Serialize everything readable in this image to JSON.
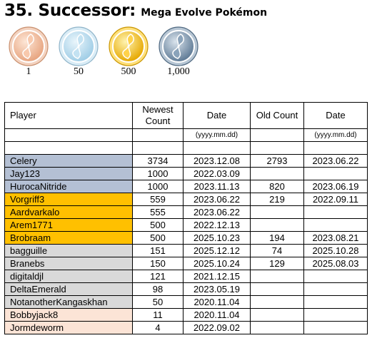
{
  "title": {
    "main": "35. Successor:",
    "sub": "Mega Evolve Pokémon"
  },
  "tiers": [
    {
      "label": "1",
      "medal": "bronze-medal-icon",
      "color": "#e8a88a"
    },
    {
      "label": "50",
      "medal": "silver-medal-icon",
      "color": "#9ccbe6"
    },
    {
      "label": "500",
      "medal": "gold-medal-icon",
      "color": "#f0c030"
    },
    {
      "label": "1,000",
      "medal": "platinum-medal-icon",
      "color": "#6f8ca8"
    }
  ],
  "table": {
    "headers": {
      "player": "Player",
      "newest_count": "Newest Count",
      "date": "Date",
      "old_count": "Old Count",
      "old_date": "Date"
    },
    "date_format": "(yyyy.mm.dd)",
    "tier_colors": {
      "platinum": "#b4c0d4",
      "gold": "#ffc000",
      "silver": "#d9d9d9",
      "bronze": "#fce4d6"
    },
    "rows": [
      {
        "player": "Celery",
        "newest": "3734",
        "date": "2023.12.08",
        "old": "2793",
        "old_date": "2023.06.22",
        "tier": "platinum"
      },
      {
        "player": "Jay123",
        "newest": "1000",
        "date": "2022.03.09",
        "old": "",
        "old_date": "",
        "tier": "platinum"
      },
      {
        "player": "HurocaNitride",
        "newest": "1000",
        "date": "2023.11.13",
        "old": "820",
        "old_date": "2023.06.19",
        "tier": "platinum"
      },
      {
        "player": "Vorgriff3",
        "newest": "559",
        "date": "2023.06.22",
        "old": "219",
        "old_date": "2022.09.11",
        "tier": "gold"
      },
      {
        "player": "Aardvarkalo",
        "newest": "555",
        "date": "2023.06.22",
        "old": "",
        "old_date": "",
        "tier": "gold"
      },
      {
        "player": "Arem1771",
        "newest": "500",
        "date": "2022.12.13",
        "old": "",
        "old_date": "",
        "tier": "gold"
      },
      {
        "player": "Brobraam",
        "newest": "500",
        "date": "2025.10.23",
        "old": "194",
        "old_date": "2023.08.21",
        "tier": "gold"
      },
      {
        "player": "bagguille",
        "newest": "151",
        "date": "2025.12.12",
        "old": "74",
        "old_date": "2025.10.28",
        "tier": "silver"
      },
      {
        "player": "Branebs",
        "newest": "150",
        "date": "2025.10.24",
        "old": "129",
        "old_date": "2025.08.03",
        "tier": "silver"
      },
      {
        "player": "digitaldjl",
        "newest": "121",
        "date": "2021.12.15",
        "old": "",
        "old_date": "",
        "tier": "silver"
      },
      {
        "player": "DeltaEmerald",
        "newest": "98",
        "date": "2023.05.19",
        "old": "",
        "old_date": "",
        "tier": "silver"
      },
      {
        "player": "NotanotherKangaskhan",
        "newest": "50",
        "date": "2020.11.04",
        "old": "",
        "old_date": "",
        "tier": "silver"
      },
      {
        "player": "Bobbyjack8",
        "newest": "11",
        "date": "2020.11.04",
        "old": "",
        "old_date": "",
        "tier": "bronze"
      },
      {
        "player": "Jormdeworm",
        "newest": "4",
        "date": "2022.09.02",
        "old": "",
        "old_date": "",
        "tier": "bronze"
      }
    ]
  }
}
